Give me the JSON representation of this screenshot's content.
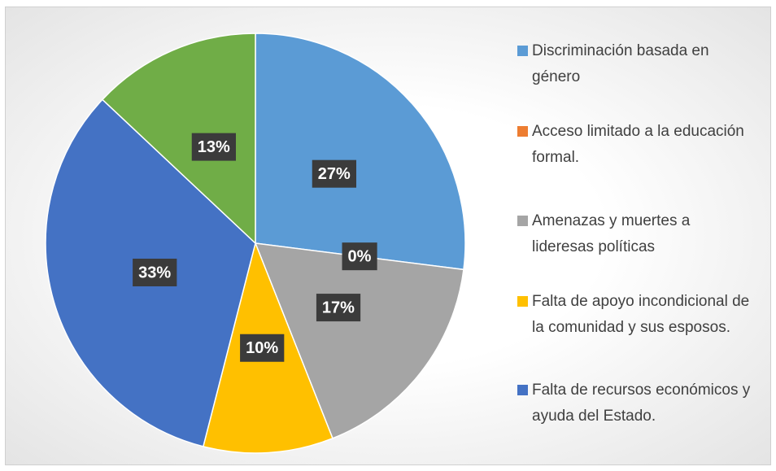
{
  "chart_data": {
    "type": "pie",
    "categories": [
      "Discriminación basada en género",
      "Acceso limitado a la educación formal.",
      "Amenazas y muertes a lideresas políticas",
      "Falta de apoyo incondicional de la comunidad y sus esposos.",
      "Falta de recursos económicos y ayuda del Estado.",
      null
    ],
    "values": [
      27,
      0,
      17,
      10,
      33,
      13
    ],
    "value_labels": [
      "27%",
      "0%",
      "17%",
      "10%",
      "33%",
      "13%"
    ],
    "colors": [
      "#5b9bd5",
      "#ed7d31",
      "#a5a5a5",
      "#ffc000",
      "#4472c4",
      "#70ad47"
    ],
    "legend": "right"
  }
}
